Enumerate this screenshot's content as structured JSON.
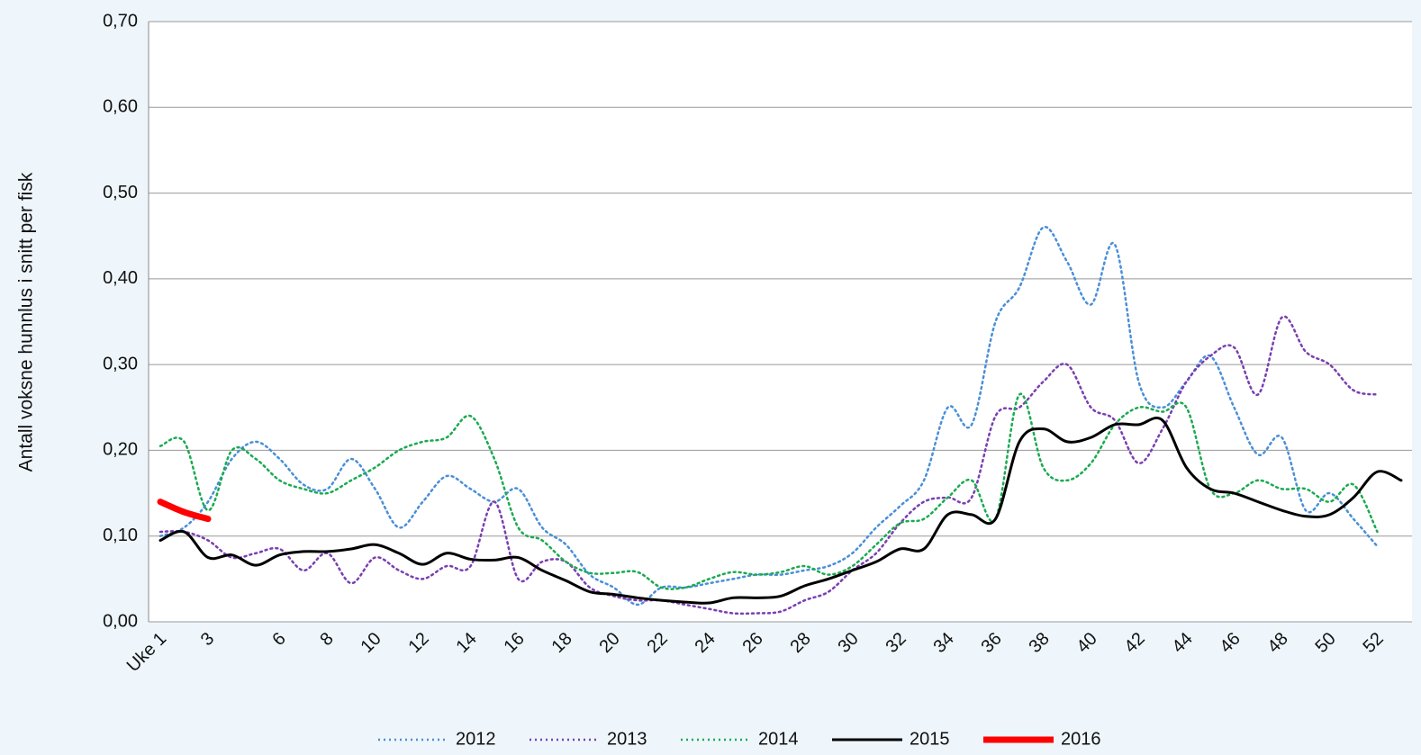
{
  "chart_data": {
    "type": "line",
    "y_label": "Antall voksne hunnlus i snitt per fisk",
    "categories": [
      "Uke 1",
      null,
      "3",
      null,
      null,
      "6",
      null,
      "8",
      null,
      "10",
      null,
      "12",
      null,
      "14",
      null,
      "16",
      null,
      "18",
      null,
      "20",
      null,
      "22",
      null,
      "24",
      null,
      "26",
      null,
      "28",
      null,
      "30",
      null,
      "32",
      null,
      "34",
      null,
      "36",
      null,
      "38",
      null,
      "40",
      null,
      "42",
      null,
      "44",
      null,
      "46",
      null,
      "48",
      null,
      "50",
      null,
      "52",
      null
    ],
    "series": [
      {
        "name": "2012",
        "color": "#4a8fd8",
        "style": "dotted",
        "values": [
          0.1,
          0.11,
          0.14,
          0.19,
          0.21,
          0.19,
          0.16,
          0.155,
          0.19,
          0.155,
          0.11,
          0.14,
          0.17,
          0.155,
          0.14,
          0.155,
          0.11,
          0.09,
          0.055,
          0.04,
          0.02,
          0.04,
          0.04,
          0.045,
          0.05,
          0.055,
          0.055,
          0.06,
          0.065,
          0.08,
          0.11,
          0.135,
          0.165,
          0.25,
          0.23,
          0.35,
          0.39,
          0.46,
          0.42,
          0.37,
          0.44,
          0.28,
          0.25,
          0.28,
          0.31,
          0.25,
          0.195,
          0.215,
          0.13,
          0.15,
          0.12,
          0.088,
          null
        ]
      },
      {
        "name": "2013",
        "color": "#7a3fb0",
        "style": "dotted",
        "values": [
          0.105,
          0.105,
          0.095,
          0.075,
          0.08,
          0.085,
          0.06,
          0.08,
          0.045,
          0.075,
          0.06,
          0.05,
          0.065,
          0.065,
          0.14,
          0.05,
          0.07,
          0.07,
          0.04,
          0.03,
          0.025,
          0.025,
          0.02,
          0.015,
          0.01,
          0.01,
          0.012,
          0.025,
          0.035,
          0.06,
          0.08,
          0.115,
          0.14,
          0.145,
          0.145,
          0.24,
          0.25,
          0.28,
          0.3,
          0.25,
          0.235,
          0.185,
          0.225,
          0.28,
          0.31,
          0.32,
          0.265,
          0.355,
          0.315,
          0.3,
          0.27,
          0.265,
          null
        ]
      },
      {
        "name": "2014",
        "color": "#1aaa50",
        "style": "dotted",
        "values": [
          0.205,
          0.21,
          0.13,
          0.2,
          0.19,
          0.165,
          0.155,
          0.15,
          0.165,
          0.18,
          0.2,
          0.21,
          0.215,
          0.24,
          0.19,
          0.11,
          0.095,
          0.07,
          0.057,
          0.057,
          0.058,
          0.04,
          0.04,
          0.05,
          0.058,
          0.055,
          0.058,
          0.065,
          0.055,
          0.065,
          0.09,
          0.115,
          0.12,
          0.145,
          0.165,
          0.12,
          0.265,
          0.18,
          0.165,
          0.185,
          0.23,
          0.25,
          0.245,
          0.25,
          0.155,
          0.15,
          0.165,
          0.155,
          0.155,
          0.14,
          0.16,
          0.105,
          null
        ]
      },
      {
        "name": "2015",
        "color": "#000000",
        "style": "solid",
        "values": [
          0.095,
          0.105,
          0.075,
          0.078,
          0.066,
          0.078,
          0.082,
          0.082,
          0.085,
          0.09,
          0.08,
          0.067,
          0.08,
          0.073,
          0.072,
          0.075,
          0.06,
          0.048,
          0.035,
          0.032,
          0.028,
          0.025,
          0.023,
          0.022,
          0.028,
          0.028,
          0.03,
          0.042,
          0.05,
          0.06,
          0.07,
          0.085,
          0.085,
          0.125,
          0.125,
          0.12,
          0.21,
          0.225,
          0.21,
          0.215,
          0.23,
          0.23,
          0.235,
          0.18,
          0.155,
          0.15,
          0.14,
          0.13,
          0.123,
          0.125,
          0.145,
          0.175,
          0.165
        ]
      },
      {
        "name": "2016",
        "color": "#ff0000",
        "style": "thick",
        "values": [
          0.14,
          0.128,
          0.12,
          null,
          null,
          null,
          null,
          null,
          null,
          null,
          null,
          null,
          null,
          null,
          null,
          null,
          null,
          null,
          null,
          null,
          null,
          null,
          null,
          null,
          null,
          null,
          null,
          null,
          null,
          null,
          null,
          null,
          null,
          null,
          null,
          null,
          null,
          null,
          null,
          null,
          null,
          null,
          null,
          null,
          null,
          null,
          null,
          null,
          null,
          null,
          null,
          null,
          null
        ]
      }
    ],
    "ylim": [
      0,
      0.7
    ],
    "yticks": [
      {
        "value": 0,
        "label": "0,00"
      },
      {
        "value": 0.1,
        "label": "0,10"
      },
      {
        "value": 0.2,
        "label": "0,20"
      },
      {
        "value": 0.3,
        "label": "0,30"
      },
      {
        "value": 0.4,
        "label": "0,40"
      },
      {
        "value": 0.5,
        "label": "0,50"
      },
      {
        "value": 0.6,
        "label": "0,60"
      },
      {
        "value": 0.7,
        "label": "0,70"
      }
    ],
    "grid": true,
    "legend": "bottom"
  }
}
